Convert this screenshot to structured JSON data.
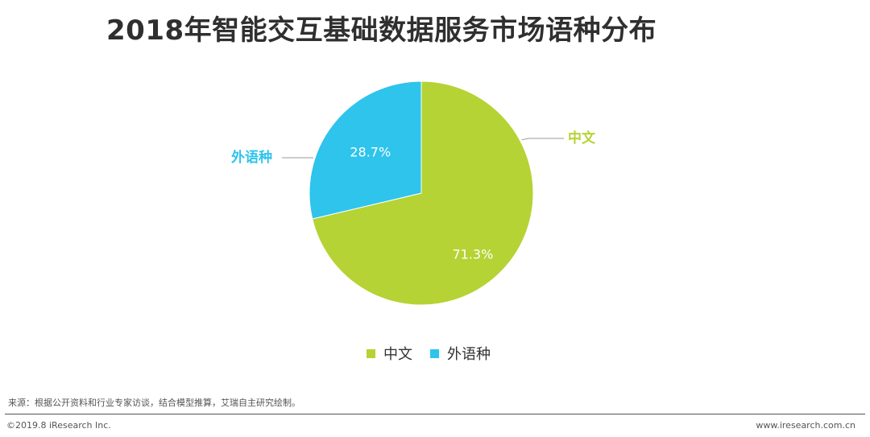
{
  "chart_data": {
    "type": "pie",
    "title": "2018年智能交互基础数据服务市场语种分布",
    "slices": [
      {
        "name": "中文",
        "value": 71.3,
        "label": "71.3%",
        "color": "#b5d334"
      },
      {
        "name": "外语种",
        "value": 28.7,
        "label": "28.7%",
        "color": "#2ec4ec"
      }
    ],
    "start_angle_deg": 0,
    "direction": "clockwise",
    "legend_position": "bottom"
  },
  "source_text": "来源：根据公开资料和行业专家访谈，结合模型推算，艾瑞自主研究绘制。",
  "copyright": "©2019.8 iResearch Inc.",
  "website": "www.iresearch.com.cn"
}
